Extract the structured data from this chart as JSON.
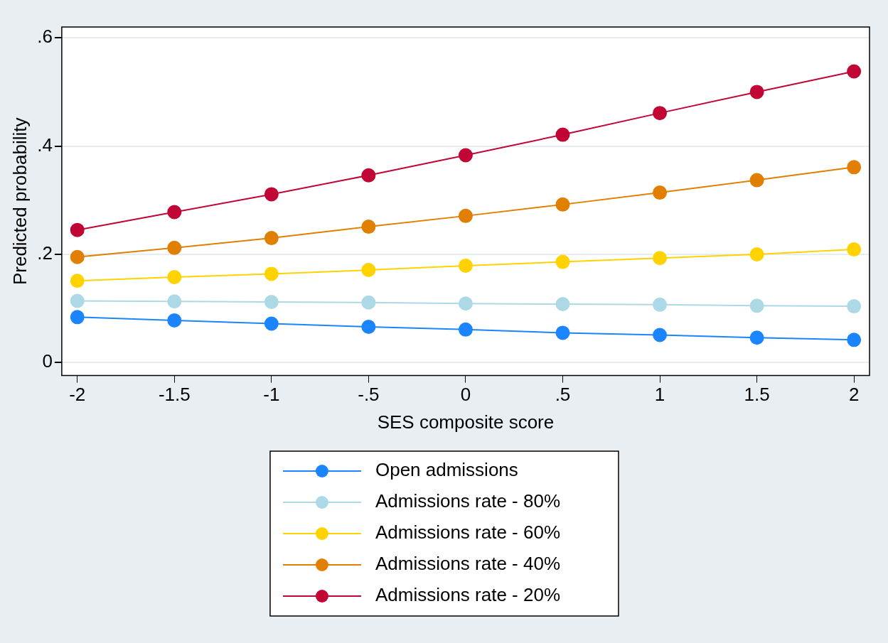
{
  "chart_data": {
    "type": "line",
    "xlabel": "SES composite score",
    "ylabel": "Predicted probability",
    "x": [
      -2,
      -1.5,
      -1,
      -0.5,
      0,
      0.5,
      1,
      1.5,
      2
    ],
    "xlim": [
      -2.08,
      2.08
    ],
    "ylim": [
      -0.024,
      0.62
    ],
    "xticks": [
      -2,
      -1.5,
      -1,
      {
        "value": -0.5,
        "label": "-.5"
      },
      0,
      {
        "value": 0.5,
        "label": ".5"
      },
      1,
      1.5,
      2
    ],
    "yticks": [
      {
        "value": 0,
        "label": "0"
      },
      {
        "value": 0.2,
        "label": ".2"
      },
      {
        "value": 0.4,
        "label": ".4"
      },
      {
        "value": 0.6,
        "label": ".6"
      }
    ],
    "grid": "y",
    "legend": "bottom",
    "marker": "circle",
    "line_style": "solid",
    "series": [
      {
        "name": "Open admissions",
        "color": "#1a85ff",
        "values": [
          0.084,
          0.078,
          0.072,
          0.066,
          0.061,
          0.055,
          0.051,
          0.046,
          0.042
        ]
      },
      {
        "name": "Admissions rate - 80%",
        "color": "#add8e6",
        "values": [
          0.114,
          0.113,
          0.112,
          0.111,
          0.109,
          0.108,
          0.107,
          0.105,
          0.104
        ]
      },
      {
        "name": "Admissions rate - 60%",
        "color": "#ffd200",
        "values": [
          0.151,
          0.158,
          0.164,
          0.171,
          0.179,
          0.186,
          0.193,
          0.2,
          0.209
        ]
      },
      {
        "name": "Admissions rate - 40%",
        "color": "#e07f00",
        "values": [
          0.195,
          0.212,
          0.23,
          0.251,
          0.271,
          0.292,
          0.314,
          0.337,
          0.361
        ]
      },
      {
        "name": "Admissions rate - 20%",
        "color": "#c10534",
        "values": [
          0.245,
          0.278,
          0.311,
          0.346,
          0.383,
          0.421,
          0.461,
          0.5,
          0.538
        ]
      }
    ]
  }
}
